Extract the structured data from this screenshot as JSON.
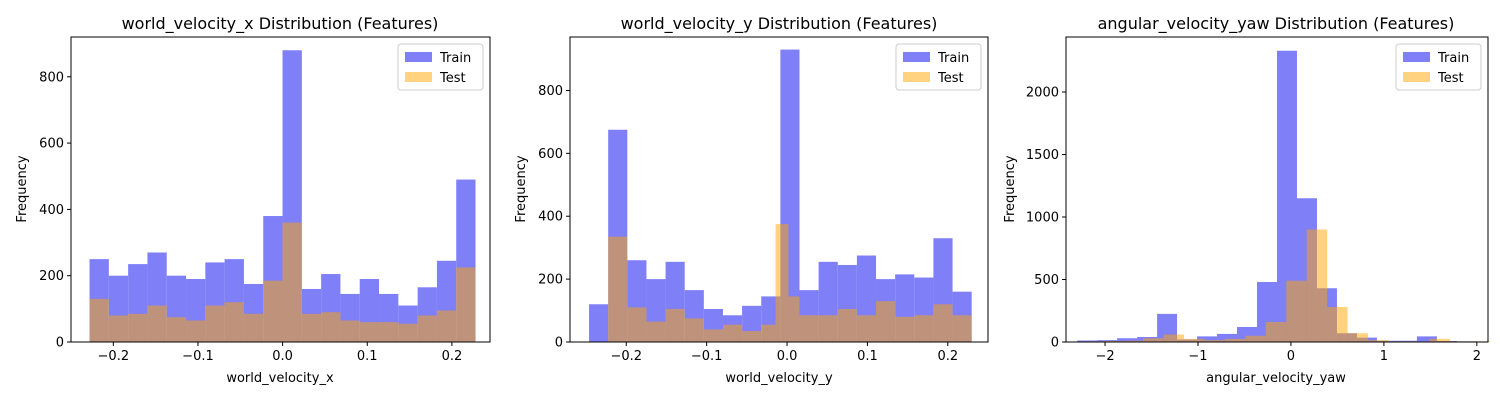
{
  "colors": {
    "train": "#7f7ff7",
    "test": "#ffa500",
    "overlap": "#c8977f"
  },
  "chart_data": [
    {
      "type": "bar",
      "title": "world_velocity_x Distribution (Features)",
      "xlabel": "world_velocity_x",
      "ylabel": "Frequency",
      "xlim": [
        -0.25,
        0.245
      ],
      "ylim": [
        0,
        920
      ],
      "xticks": [
        -0.2,
        -0.1,
        0.0,
        0.1,
        0.2
      ],
      "xtick_labels": [
        "−0.2",
        "−0.1",
        "0.0",
        "0.1",
        "0.2"
      ],
      "yticks": [
        0,
        200,
        400,
        600,
        800
      ],
      "ytick_labels": [
        "0",
        "200",
        "400",
        "600",
        "800"
      ],
      "legend": {
        "position": "top-right",
        "entries": [
          "Train",
          "Test"
        ]
      },
      "bin_edges": [
        -0.2281,
        -0.2053,
        -0.1825,
        -0.1597,
        -0.1369,
        -0.1141,
        -0.0913,
        -0.0685,
        -0.0457,
        -0.0229,
        -0.0001,
        0.0227,
        0.0455,
        0.0683,
        0.0911,
        0.1139,
        0.1367,
        0.1595,
        0.1823,
        0.2051,
        0.2279
      ],
      "series": [
        {
          "name": "Train",
          "values": [
            250,
            200,
            235,
            270,
            200,
            190,
            240,
            250,
            175,
            380,
            880,
            160,
            205,
            145,
            190,
            145,
            110,
            165,
            245,
            490
          ]
        },
        {
          "name": "Test",
          "values": [
            130,
            80,
            85,
            110,
            75,
            65,
            110,
            120,
            85,
            185,
            360,
            85,
            90,
            65,
            60,
            60,
            55,
            80,
            95,
            225
          ]
        }
      ]
    },
    {
      "type": "bar",
      "title": "world_velocity_y Distribution (Features)",
      "xlabel": "world_velocity_y",
      "ylabel": "Frequency",
      "xlim": [
        -0.27,
        0.25
      ],
      "ylim": [
        0,
        970
      ],
      "xticks": [
        -0.2,
        -0.1,
        0.0,
        0.1,
        0.2
      ],
      "xtick_labels": [
        "−0.2",
        "−0.1",
        "0.0",
        "0.1",
        "0.2"
      ],
      "yticks": [
        0,
        200,
        400,
        600,
        800
      ],
      "ytick_labels": [
        "0",
        "200",
        "400",
        "600",
        "800"
      ],
      "legend": {
        "position": "top-right",
        "entries": [
          "Train",
          "Test"
        ]
      },
      "bin_edges": [
        -0.2463,
        -0.2225,
        -0.1987,
        -0.1749,
        -0.1511,
        -0.1273,
        -0.1035,
        -0.0797,
        -0.0559,
        -0.0321,
        -0.0083,
        0.0155,
        0.0393,
        0.0631,
        0.0869,
        0.1107,
        0.1345,
        0.1583,
        0.1821,
        0.2059,
        0.2297
      ],
      "series": [
        {
          "name": "Train",
          "values": [
            120,
            675,
            260,
            200,
            255,
            165,
            105,
            85,
            115,
            145,
            930,
            165,
            255,
            245,
            275,
            200,
            215,
            205,
            330,
            160
          ]
        },
        {
          "name": "Test",
          "values": [
            0,
            335,
            110,
            65,
            105,
            75,
            40,
            55,
            35,
            55,
            380,
            85,
            85,
            105,
            85,
            130,
            80,
            85,
            120,
            85
          ]
        }
      ],
      "test_bin_edges": [
        -0.2225,
        -0.1987,
        -0.1749,
        -0.1511,
        -0.1273,
        -0.1035,
        -0.0797,
        -0.0559,
        -0.0321,
        -0.0143,
        0.0017,
        0.0155,
        0.0393,
        0.0631,
        0.0869,
        0.1107,
        0.1345,
        0.1583,
        0.1821,
        0.2059,
        0.2297
      ],
      "test_values": [
        335,
        110,
        65,
        105,
        75,
        40,
        55,
        35,
        55,
        375,
        145,
        85,
        85,
        105,
        85,
        130,
        80,
        85,
        120,
        85
      ]
    },
    {
      "type": "bar",
      "title": "angular_velocity_yaw Distribution (Features)",
      "xlabel": "angular_velocity_yaw",
      "ylabel": "Frequency",
      "xlim": [
        -2.42,
        2.12
      ],
      "ylim": [
        0,
        2440
      ],
      "xticks": [
        -2,
        -1,
        0,
        1,
        2
      ],
      "xtick_labels": [
        "−2",
        "−1",
        "0",
        "1",
        "2"
      ],
      "yticks": [
        0,
        500,
        1000,
        1500,
        2000
      ],
      "ytick_labels": [
        "0",
        "500",
        "1000",
        "1500",
        "2000"
      ],
      "legend": {
        "position": "top-right",
        "entries": [
          "Train",
          "Test"
        ]
      },
      "bin_edges": [
        -2.3,
        -2.085,
        -1.87,
        -1.655,
        -1.44,
        -1.225,
        -1.01,
        -0.795,
        -0.58,
        -0.365,
        -0.15,
        0.065,
        0.28,
        0.495,
        0.71,
        0.925,
        1.14,
        1.355,
        1.57,
        1.785,
        2.0
      ],
      "series": [
        {
          "name": "Train",
          "values": [
            12,
            15,
            30,
            40,
            225,
            20,
            45,
            65,
            120,
            480,
            2330,
            1150,
            430,
            70,
            35,
            10,
            10,
            45,
            8,
            5
          ]
        },
        {
          "name": "Test",
          "values": [
            5,
            8,
            10,
            30,
            60,
            25,
            15,
            25,
            50,
            160,
            490,
            900,
            280,
            70,
            15,
            5,
            5,
            25,
            5,
            5
          ]
        }
      ],
      "test_bin_edges": [
        -2.25,
        -2.03,
        -1.81,
        -1.59,
        -1.37,
        -1.15,
        -0.93,
        -0.71,
        -0.49,
        -0.27,
        -0.05,
        0.17,
        0.39,
        0.61,
        0.83,
        1.05,
        1.27,
        1.49,
        1.71,
        1.93,
        2.15
      ]
    }
  ]
}
